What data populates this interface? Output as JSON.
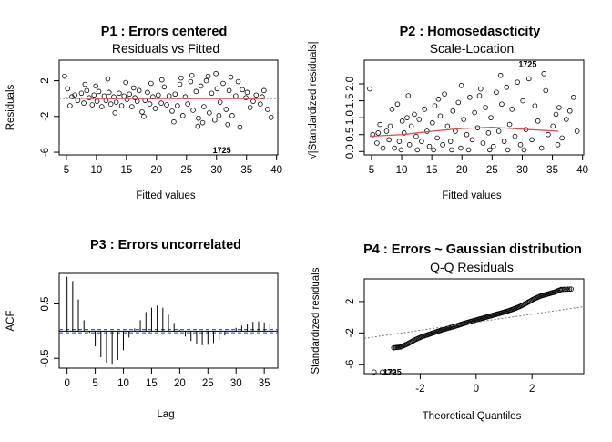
{
  "chart_data": [
    {
      "id": "p1",
      "type": "scatter",
      "title": "P1 : Errors centered",
      "subtitle": "Residuals vs Fitted",
      "xlabel": "Fitted values",
      "ylabel": "Residuals",
      "xlim": [
        3.8,
        40.2
      ],
      "ylim": [
        -6.3,
        4.3
      ],
      "xticks": [
        5,
        10,
        15,
        20,
        25,
        30,
        35,
        40
      ],
      "yticks": [
        -6,
        -2,
        2
      ],
      "ref_line_y": 0,
      "labeled_points": [
        {
          "x": 30.9,
          "y": -5.8,
          "label": "1725"
        }
      ],
      "points": [
        [
          4.7,
          2.5
        ],
        [
          5.2,
          1.1
        ],
        [
          5.9,
          0.2
        ],
        [
          6.4,
          0.4
        ],
        [
          6.9,
          -0.2
        ],
        [
          7.5,
          0.6
        ],
        [
          7.9,
          -0.5
        ],
        [
          8.4,
          0.9
        ],
        [
          8.8,
          0.1
        ],
        [
          9.3,
          -0.7
        ],
        [
          9.6,
          0.4
        ],
        [
          10.1,
          -0.3
        ],
        [
          10.4,
          0.8
        ],
        [
          10.9,
          -0.9
        ],
        [
          11.3,
          0.3
        ],
        [
          11.6,
          -0.2
        ],
        [
          12.1,
          0.7
        ],
        [
          12.4,
          -0.6
        ],
        [
          12.9,
          0.2
        ],
        [
          13.3,
          -0.4
        ],
        [
          13.8,
          0.6
        ],
        [
          14.2,
          -0.8
        ],
        [
          14.6,
          0.3
        ],
        [
          15.1,
          -0.1
        ],
        [
          15.5,
          0.5
        ],
        [
          15.9,
          -0.9
        ],
        [
          16.4,
          0.1
        ],
        [
          16.8,
          -0.3
        ],
        [
          17.1,
          0.9
        ],
        [
          17.6,
          -1.5
        ],
        [
          18.1,
          -0.2
        ],
        [
          18.5,
          0.7
        ],
        [
          18.9,
          -0.6
        ],
        [
          19.4,
          0.2
        ],
        [
          19.8,
          -1.1
        ],
        [
          20.3,
          0.4
        ],
        [
          20.8,
          -0.5
        ],
        [
          21.3,
          1.3
        ],
        [
          21.7,
          -0.7
        ],
        [
          22.1,
          0.3
        ],
        [
          22.6,
          -1.4
        ],
        [
          23.1,
          0.5
        ],
        [
          23.5,
          -0.8
        ],
        [
          23.9,
          1.6
        ],
        [
          24.4,
          -1.9
        ],
        [
          24.8,
          0.2
        ],
        [
          25.2,
          -0.6
        ],
        [
          25.7,
          1.9
        ],
        [
          26.1,
          -1.3
        ],
        [
          26.6,
          0.8
        ],
        [
          27.0,
          -2.2
        ],
        [
          27.4,
          1.4
        ],
        [
          27.9,
          -0.9
        ],
        [
          28.3,
          2.0
        ],
        [
          28.8,
          -1.6
        ],
        [
          29.2,
          0.6
        ],
        [
          29.7,
          -2.4
        ],
        [
          30.1,
          1.1
        ],
        [
          30.6,
          -0.4
        ],
        [
          31.1,
          1.7
        ],
        [
          31.6,
          -1.2
        ],
        [
          32.1,
          0.9
        ],
        [
          32.6,
          -1.9
        ],
        [
          33.2,
          0.3
        ],
        [
          33.9,
          -3.2
        ],
        [
          34.3,
          1.0
        ],
        [
          35.1,
          0.7
        ],
        [
          35.6,
          -1.0
        ],
        [
          36.6,
          0.4
        ],
        [
          37.3,
          -0.6
        ],
        [
          37.9,
          0.9
        ],
        [
          38.5,
          -1.2
        ],
        [
          39.1,
          -2.1
        ],
        [
          5.6,
          -0.8
        ],
        [
          8.1,
          1.6
        ],
        [
          11.9,
          2.2
        ],
        [
          14.9,
          1.8
        ],
        [
          17.9,
          -2.0
        ],
        [
          20.9,
          2.1
        ],
        [
          22.9,
          -2.6
        ],
        [
          25.9,
          2.6
        ],
        [
          27.7,
          -2.7
        ],
        [
          29.9,
          2.8
        ],
        [
          31.9,
          -2.9
        ],
        [
          33.6,
          1.9
        ],
        [
          36.1,
          -0.3
        ],
        [
          9.9,
          1.4
        ],
        [
          13.1,
          -1.6
        ],
        [
          16.2,
          1.2
        ],
        [
          19.1,
          1.7
        ],
        [
          24.1,
          2.3
        ],
        [
          26.9,
          -3.1
        ],
        [
          28.6,
          2.5
        ],
        [
          30.4,
          -1.9
        ],
        [
          32.4,
          2.4
        ],
        [
          34.9,
          0.1
        ],
        [
          37.6,
          0.2
        ]
      ],
      "smooth_line": [
        [
          4.7,
          0.1
        ],
        [
          10,
          0.0
        ],
        [
          20,
          0.0
        ],
        [
          30,
          0.0
        ],
        [
          38,
          0.0
        ]
      ]
    },
    {
      "id": "p2",
      "type": "scatter",
      "title": "P2 : Homosedascticity",
      "subtitle": "Scale-Location",
      "xlabel": "Fitted values",
      "ylabel": "√|Standardized residuals|",
      "xlim": [
        3.8,
        40.2
      ],
      "ylim": [
        -0.1,
        2.7
      ],
      "xticks": [
        5,
        10,
        15,
        20,
        25,
        30,
        35,
        40
      ],
      "yticks": [
        0.0,
        0.5,
        1.0,
        1.5,
        2.0
      ],
      "labeled_points": [
        {
          "x": 30.9,
          "y": 2.58,
          "label": "1725"
        }
      ],
      "points": [
        [
          4.7,
          1.85
        ],
        [
          5.2,
          0.5
        ],
        [
          5.9,
          0.25
        ],
        [
          6.4,
          0.8
        ],
        [
          6.9,
          0.1
        ],
        [
          7.5,
          0.6
        ],
        [
          7.9,
          0.35
        ],
        [
          8.4,
          1.25
        ],
        [
          8.8,
          0.1
        ],
        [
          9.3,
          1.4
        ],
        [
          9.6,
          0.3
        ],
        [
          10.1,
          0.9
        ],
        [
          10.4,
          0.55
        ],
        [
          10.9,
          1.0
        ],
        [
          11.3,
          0.2
        ],
        [
          11.6,
          0.75
        ],
        [
          12.1,
          1.1
        ],
        [
          12.4,
          0.45
        ],
        [
          12.9,
          0.95
        ],
        [
          13.3,
          0.3
        ],
        [
          13.8,
          1.25
        ],
        [
          14.2,
          0.6
        ],
        [
          14.6,
          0.15
        ],
        [
          15.1,
          0.85
        ],
        [
          15.5,
          1.35
        ],
        [
          15.9,
          0.4
        ],
        [
          16.4,
          1.05
        ],
        [
          16.8,
          0.2
        ],
        [
          17.1,
          1.7
        ],
        [
          17.6,
          0.75
        ],
        [
          18.1,
          0.3
        ],
        [
          18.5,
          1.2
        ],
        [
          18.9,
          0.6
        ],
        [
          19.4,
          1.45
        ],
        [
          19.8,
          0.1
        ],
        [
          20.3,
          0.95
        ],
        [
          20.8,
          0.5
        ],
        [
          21.3,
          1.6
        ],
        [
          21.7,
          0.35
        ],
        [
          22.1,
          1.15
        ],
        [
          22.6,
          0.7
        ],
        [
          23.1,
          1.85
        ],
        [
          23.5,
          0.25
        ],
        [
          23.9,
          1.3
        ],
        [
          24.4,
          0.55
        ],
        [
          24.8,
          1.0
        ],
        [
          25.2,
          0.15
        ],
        [
          25.7,
          1.75
        ],
        [
          26.1,
          0.6
        ],
        [
          26.6,
          1.4
        ],
        [
          27.0,
          0.3
        ],
        [
          27.4,
          1.9
        ],
        [
          27.9,
          0.8
        ],
        [
          28.3,
          1.25
        ],
        [
          28.8,
          0.45
        ],
        [
          29.2,
          2.05
        ],
        [
          29.7,
          0.2
        ],
        [
          30.1,
          1.5
        ],
        [
          30.6,
          0.65
        ],
        [
          31.1,
          2.15
        ],
        [
          31.6,
          0.35
        ],
        [
          32.1,
          1.35
        ],
        [
          32.6,
          0.9
        ],
        [
          33.2,
          0.1
        ],
        [
          33.9,
          1.8
        ],
        [
          34.3,
          0.5
        ],
        [
          35.1,
          0.75
        ],
        [
          35.6,
          1.1
        ],
        [
          36.6,
          0.4
        ],
        [
          37.3,
          0.95
        ],
        [
          37.9,
          1.2
        ],
        [
          38.5,
          1.6
        ],
        [
          39.1,
          0.6
        ],
        [
          9.9,
          0.05
        ],
        [
          12.6,
          0.05
        ],
        [
          15.3,
          0.05
        ],
        [
          18.3,
          0.05
        ],
        [
          21.1,
          0.05
        ],
        [
          24.6,
          0.05
        ],
        [
          27.6,
          0.05
        ],
        [
          30.3,
          0.05
        ],
        [
          26.4,
          2.25
        ],
        [
          22.9,
          1.65
        ],
        [
          19.9,
          1.95
        ],
        [
          16.1,
          1.55
        ],
        [
          33.6,
          2.3
        ],
        [
          35.9,
          0.2
        ],
        [
          36.1,
          1.3
        ],
        [
          8.1,
          0.75
        ],
        [
          6.1,
          0.55
        ],
        [
          11.1,
          1.65
        ]
      ],
      "smooth_line": [
        [
          4.7,
          0.45
        ],
        [
          10,
          0.5
        ],
        [
          15,
          0.6
        ],
        [
          20,
          0.68
        ],
        [
          25,
          0.72
        ],
        [
          30,
          0.66
        ],
        [
          36,
          0.6
        ]
      ]
    },
    {
      "id": "p3",
      "type": "bar",
      "title": "P3 : Errors uncorrelated",
      "subtitle": "",
      "xlabel": "Lag",
      "ylabel": "ACF",
      "xlim": [
        -1.4,
        37.4
      ],
      "ylim": [
        -0.68,
        1.06
      ],
      "xticks": [
        0,
        5,
        10,
        15,
        20,
        25,
        30,
        35
      ],
      "yticks": [
        -0.5,
        0.5
      ],
      "ci_band": 0.03,
      "x": [
        0,
        1,
        2,
        3,
        4,
        5,
        6,
        7,
        8,
        9,
        10,
        11,
        12,
        13,
        14,
        15,
        16,
        17,
        18,
        19,
        20,
        21,
        22,
        23,
        24,
        25,
        26,
        27,
        28,
        29,
        30,
        31,
        32,
        33,
        34,
        35,
        36
      ],
      "values": [
        1.0,
        0.92,
        0.58,
        0.2,
        -0.03,
        -0.28,
        -0.48,
        -0.58,
        -0.6,
        -0.53,
        -0.35,
        -0.12,
        0.05,
        0.2,
        0.35,
        0.43,
        0.47,
        0.43,
        0.3,
        0.15,
        0.02,
        -0.1,
        -0.18,
        -0.24,
        -0.26,
        -0.25,
        -0.22,
        -0.16,
        -0.08,
        0.0,
        0.06,
        0.1,
        0.14,
        0.17,
        0.18,
        0.16,
        0.12
      ]
    },
    {
      "id": "p4",
      "type": "scatter",
      "title": "P4 : Errors ~ Gaussian distribution",
      "subtitle": "Q-Q Residuals",
      "xlabel": "Theoretical Quantiles",
      "ylabel": "Standardized residuals",
      "xlim": [
        -4.0,
        3.85
      ],
      "ylim": [
        -7.2,
        4.9
      ],
      "xticks": [
        -2,
        0,
        2
      ],
      "yticks": [
        -6,
        -2,
        2
      ],
      "labeled_points": [
        {
          "x": -3.0,
          "y": -7.0,
          "label": "1725"
        }
      ],
      "ref_line": [
        [
          -4.0,
          -2.7
        ],
        [
          3.85,
          1.35
        ]
      ],
      "qq_curve": [
        [
          -2.95,
          -3.9
        ],
        [
          -2.7,
          -3.8
        ],
        [
          -2.45,
          -3.4
        ],
        [
          -2.2,
          -2.9
        ],
        [
          -1.95,
          -2.5
        ],
        [
          -1.7,
          -2.2
        ],
        [
          -1.45,
          -1.9
        ],
        [
          -1.2,
          -1.6
        ],
        [
          -0.95,
          -1.35
        ],
        [
          -0.7,
          -1.1
        ],
        [
          -0.45,
          -0.8
        ],
        [
          -0.2,
          -0.55
        ],
        [
          0.05,
          -0.3
        ],
        [
          0.3,
          -0.05
        ],
        [
          0.55,
          0.2
        ],
        [
          0.8,
          0.45
        ],
        [
          1.05,
          0.7
        ],
        [
          1.3,
          1.0
        ],
        [
          1.55,
          1.35
        ],
        [
          1.8,
          1.8
        ],
        [
          2.05,
          2.3
        ],
        [
          2.3,
          2.7
        ],
        [
          2.55,
          2.95
        ],
        [
          2.8,
          3.2
        ],
        [
          3.05,
          3.55
        ],
        [
          3.4,
          3.6
        ]
      ],
      "outliers": [
        [
          -3.65,
          -7.0
        ],
        [
          -3.35,
          -7.0
        ],
        [
          -3.15,
          -7.0
        ],
        [
          -2.95,
          -7.0
        ]
      ]
    }
  ]
}
